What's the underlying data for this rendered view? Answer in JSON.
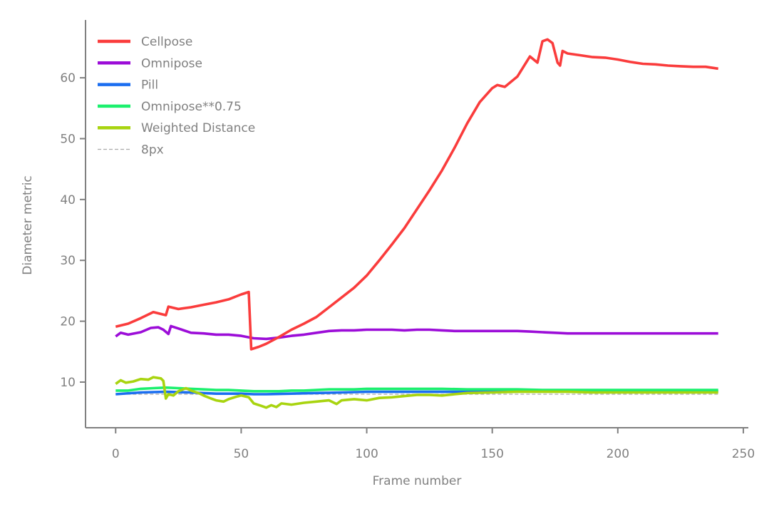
{
  "chart_data": {
    "type": "line",
    "title": "",
    "xlabel": "Frame number",
    "ylabel": "Diameter metric",
    "xlim": [
      -12,
      252
    ],
    "ylim": [
      2.5,
      69.5
    ],
    "xticks": [
      0,
      50,
      100,
      150,
      200,
      250
    ],
    "yticks": [
      10,
      20,
      30,
      40,
      50,
      60
    ],
    "grid": false,
    "legend_position": "top-left",
    "axis_color": "#808080",
    "series": [
      {
        "name": "Cellpose",
        "color": "#fa3c3c",
        "style": "solid",
        "points": [
          [
            0,
            19.1
          ],
          [
            5,
            19.6
          ],
          [
            10,
            20.5
          ],
          [
            15,
            21.5
          ],
          [
            20,
            21.0
          ],
          [
            21,
            22.4
          ],
          [
            25,
            22.0
          ],
          [
            30,
            22.3
          ],
          [
            35,
            22.7
          ],
          [
            40,
            23.1
          ],
          [
            45,
            23.6
          ],
          [
            50,
            24.4
          ],
          [
            53,
            24.8
          ],
          [
            54,
            15.4
          ],
          [
            57,
            15.8
          ],
          [
            60,
            16.3
          ],
          [
            65,
            17.4
          ],
          [
            70,
            18.6
          ],
          [
            75,
            19.6
          ],
          [
            80,
            20.7
          ],
          [
            85,
            22.3
          ],
          [
            90,
            23.9
          ],
          [
            95,
            25.5
          ],
          [
            100,
            27.5
          ],
          [
            105,
            30.0
          ],
          [
            110,
            32.6
          ],
          [
            115,
            35.3
          ],
          [
            120,
            38.4
          ],
          [
            125,
            41.5
          ],
          [
            130,
            44.8
          ],
          [
            135,
            48.5
          ],
          [
            140,
            52.5
          ],
          [
            145,
            56.0
          ],
          [
            150,
            58.3
          ],
          [
            152,
            58.8
          ],
          [
            155,
            58.5
          ],
          [
            160,
            60.2
          ],
          [
            165,
            63.5
          ],
          [
            168,
            62.5
          ],
          [
            170,
            66.0
          ],
          [
            172,
            66.3
          ],
          [
            174,
            65.7
          ],
          [
            176,
            62.5
          ],
          [
            177,
            62.0
          ],
          [
            178,
            64.4
          ],
          [
            180,
            64.0
          ],
          [
            185,
            63.7
          ],
          [
            190,
            63.4
          ],
          [
            195,
            63.3
          ],
          [
            200,
            63.0
          ],
          [
            205,
            62.6
          ],
          [
            210,
            62.3
          ],
          [
            215,
            62.2
          ],
          [
            220,
            62.0
          ],
          [
            225,
            61.9
          ],
          [
            230,
            61.8
          ],
          [
            235,
            61.8
          ],
          [
            240,
            61.5
          ]
        ]
      },
      {
        "name": "Omnipose",
        "color": "#9c0dd8",
        "style": "solid",
        "points": [
          [
            0,
            17.5
          ],
          [
            2,
            18.1
          ],
          [
            5,
            17.8
          ],
          [
            10,
            18.2
          ],
          [
            14,
            18.9
          ],
          [
            17,
            19.0
          ],
          [
            19,
            18.6
          ],
          [
            21,
            17.9
          ],
          [
            22,
            19.2
          ],
          [
            25,
            18.8
          ],
          [
            30,
            18.1
          ],
          [
            35,
            18.0
          ],
          [
            40,
            17.8
          ],
          [
            45,
            17.8
          ],
          [
            50,
            17.6
          ],
          [
            55,
            17.2
          ],
          [
            60,
            17.1
          ],
          [
            65,
            17.3
          ],
          [
            70,
            17.6
          ],
          [
            75,
            17.8
          ],
          [
            80,
            18.1
          ],
          [
            85,
            18.4
          ],
          [
            90,
            18.5
          ],
          [
            95,
            18.5
          ],
          [
            100,
            18.6
          ],
          [
            105,
            18.6
          ],
          [
            110,
            18.6
          ],
          [
            115,
            18.5
          ],
          [
            120,
            18.6
          ],
          [
            125,
            18.6
          ],
          [
            130,
            18.5
          ],
          [
            135,
            18.4
          ],
          [
            140,
            18.4
          ],
          [
            145,
            18.4
          ],
          [
            150,
            18.4
          ],
          [
            155,
            18.4
          ],
          [
            160,
            18.4
          ],
          [
            165,
            18.3
          ],
          [
            170,
            18.2
          ],
          [
            175,
            18.1
          ],
          [
            180,
            18.0
          ],
          [
            190,
            18.0
          ],
          [
            200,
            18.0
          ],
          [
            210,
            18.0
          ],
          [
            220,
            18.0
          ],
          [
            230,
            18.0
          ],
          [
            240,
            18.0
          ]
        ]
      },
      {
        "name": "Pill",
        "color": "#1b6ef0",
        "style": "solid",
        "points": [
          [
            0,
            8.0
          ],
          [
            10,
            8.3
          ],
          [
            20,
            8.4
          ],
          [
            30,
            8.3
          ],
          [
            40,
            8.1
          ],
          [
            50,
            8.1
          ],
          [
            55,
            8.0
          ],
          [
            60,
            8.0
          ],
          [
            70,
            8.1
          ],
          [
            80,
            8.2
          ],
          [
            90,
            8.3
          ],
          [
            100,
            8.4
          ],
          [
            110,
            8.4
          ],
          [
            120,
            8.4
          ],
          [
            130,
            8.4
          ],
          [
            140,
            8.4
          ],
          [
            150,
            8.5
          ],
          [
            160,
            8.5
          ],
          [
            170,
            8.5
          ],
          [
            180,
            8.5
          ],
          [
            200,
            8.5
          ],
          [
            220,
            8.5
          ],
          [
            240,
            8.5
          ]
        ]
      },
      {
        "name": "Omnipose**0.75",
        "color": "#1cf06e",
        "style": "solid",
        "points": [
          [
            0,
            8.6
          ],
          [
            5,
            8.6
          ],
          [
            10,
            8.9
          ],
          [
            15,
            9.0
          ],
          [
            20,
            9.1
          ],
          [
            25,
            9.0
          ],
          [
            30,
            8.9
          ],
          [
            35,
            8.8
          ],
          [
            40,
            8.7
          ],
          [
            45,
            8.7
          ],
          [
            50,
            8.6
          ],
          [
            55,
            8.5
          ],
          [
            60,
            8.5
          ],
          [
            65,
            8.5
          ],
          [
            70,
            8.6
          ],
          [
            75,
            8.6
          ],
          [
            80,
            8.7
          ],
          [
            85,
            8.8
          ],
          [
            90,
            8.8
          ],
          [
            95,
            8.8
          ],
          [
            100,
            8.9
          ],
          [
            110,
            8.9
          ],
          [
            120,
            8.9
          ],
          [
            130,
            8.9
          ],
          [
            140,
            8.8
          ],
          [
            150,
            8.8
          ],
          [
            160,
            8.8
          ],
          [
            170,
            8.7
          ],
          [
            180,
            8.7
          ],
          [
            190,
            8.7
          ],
          [
            200,
            8.7
          ],
          [
            210,
            8.7
          ],
          [
            220,
            8.7
          ],
          [
            230,
            8.7
          ],
          [
            240,
            8.7
          ]
        ]
      },
      {
        "name": "Weighted Distance",
        "color": "#a8d40f",
        "style": "solid",
        "points": [
          [
            0,
            9.7
          ],
          [
            2,
            10.3
          ],
          [
            4,
            9.9
          ],
          [
            7,
            10.1
          ],
          [
            10,
            10.5
          ],
          [
            13,
            10.4
          ],
          [
            15,
            10.8
          ],
          [
            18,
            10.6
          ],
          [
            19,
            10.2
          ],
          [
            20,
            7.3
          ],
          [
            21,
            8.0
          ],
          [
            23,
            7.8
          ],
          [
            25,
            8.5
          ],
          [
            28,
            9.0
          ],
          [
            30,
            8.6
          ],
          [
            33,
            8.2
          ],
          [
            35,
            7.8
          ],
          [
            38,
            7.3
          ],
          [
            40,
            7.0
          ],
          [
            43,
            6.8
          ],
          [
            45,
            7.2
          ],
          [
            48,
            7.6
          ],
          [
            50,
            7.8
          ],
          [
            53,
            7.5
          ],
          [
            55,
            6.5
          ],
          [
            58,
            6.1
          ],
          [
            60,
            5.8
          ],
          [
            62,
            6.2
          ],
          [
            64,
            5.9
          ],
          [
            66,
            6.5
          ],
          [
            70,
            6.3
          ],
          [
            75,
            6.6
          ],
          [
            80,
            6.8
          ],
          [
            85,
            7.0
          ],
          [
            88,
            6.4
          ],
          [
            90,
            7.0
          ],
          [
            95,
            7.2
          ],
          [
            100,
            7.0
          ],
          [
            105,
            7.4
          ],
          [
            110,
            7.5
          ],
          [
            115,
            7.7
          ],
          [
            120,
            7.9
          ],
          [
            125,
            7.9
          ],
          [
            130,
            7.8
          ],
          [
            135,
            8.0
          ],
          [
            140,
            8.2
          ],
          [
            150,
            8.3
          ],
          [
            160,
            8.4
          ],
          [
            170,
            8.4
          ],
          [
            180,
            8.4
          ],
          [
            190,
            8.3
          ],
          [
            200,
            8.3
          ],
          [
            210,
            8.3
          ],
          [
            220,
            8.3
          ],
          [
            230,
            8.3
          ],
          [
            240,
            8.3
          ]
        ]
      },
      {
        "name": "8px",
        "color": "#aaaaaa",
        "style": "dashed",
        "points": [
          [
            0,
            8
          ],
          [
            240,
            8
          ]
        ]
      }
    ]
  }
}
